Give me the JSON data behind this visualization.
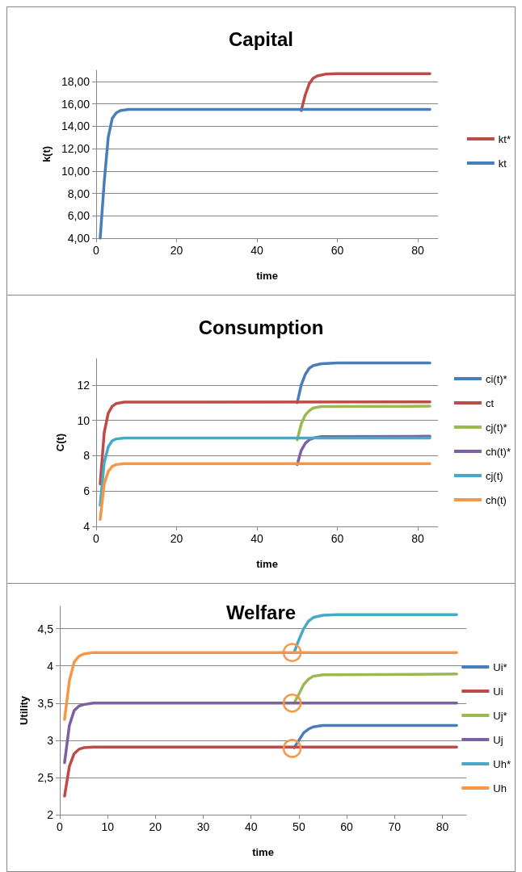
{
  "chart_data": [
    {
      "type": "line",
      "title": "Capital",
      "xlabel": "time",
      "ylabel": "k(t)",
      "xlim": [
        0,
        85
      ],
      "xticks": [
        0,
        20,
        40,
        60,
        80
      ],
      "ylim": [
        4,
        19
      ],
      "yticks": [
        {
          "value": 4,
          "label": "4,00"
        },
        {
          "value": 6,
          "label": "6,00"
        },
        {
          "value": 8,
          "label": "8,00"
        },
        {
          "value": 10,
          "label": "10,00"
        },
        {
          "value": 12,
          "label": "12,00"
        },
        {
          "value": 14,
          "label": "14,00"
        },
        {
          "value": 16,
          "label": "16,00"
        },
        {
          "value": 18,
          "label": "18,00"
        }
      ],
      "grid": "y",
      "legend": "right",
      "marker": "none",
      "line_style": "solid",
      "series": [
        {
          "name": "kt*",
          "color": "#be4b48",
          "x": [
            51,
            52,
            53,
            54,
            55,
            57,
            60,
            83
          ],
          "values": [
            15.4,
            16.8,
            17.8,
            18.3,
            18.5,
            18.65,
            18.7,
            18.7
          ]
        },
        {
          "name": "kt",
          "color": "#4a7ebb",
          "x": [
            1,
            2,
            3,
            4,
            5,
            6,
            8,
            83
          ],
          "values": [
            4,
            9,
            13,
            14.7,
            15.2,
            15.4,
            15.5,
            15.5
          ]
        }
      ]
    },
    {
      "type": "line",
      "title": "Consumption",
      "xlabel": "time",
      "ylabel": "C(t)",
      "xlim": [
        0,
        85
      ],
      "xticks": [
        0,
        20,
        40,
        60,
        80
      ],
      "ylim": [
        4,
        13.5
      ],
      "yticks": [
        4,
        6,
        8,
        10,
        12
      ],
      "grid": "y",
      "legend": "right",
      "marker": "none",
      "line_style": "solid",
      "series": [
        {
          "name": "ci(t)*",
          "color": "#4a7ebb",
          "x": [
            50,
            51,
            52,
            53,
            54,
            56,
            60,
            83
          ],
          "values": [
            11.0,
            12.0,
            12.6,
            12.95,
            13.1,
            13.2,
            13.25,
            13.25
          ]
        },
        {
          "name": "ct",
          "color": "#be4b48",
          "x": [
            1,
            2,
            3,
            4,
            5,
            7,
            83
          ],
          "values": [
            6.4,
            9.3,
            10.4,
            10.8,
            10.95,
            11.03,
            11.05
          ]
        },
        {
          "name": "cj(t)*",
          "color": "#98b954",
          "x": [
            50,
            51,
            52,
            53,
            54,
            56,
            83
          ],
          "values": [
            8.9,
            9.8,
            10.3,
            10.55,
            10.7,
            10.78,
            10.8
          ]
        },
        {
          "name": "ch(t)*",
          "color": "#7d60a0",
          "x": [
            50,
            51,
            52,
            53,
            54,
            56,
            83
          ],
          "values": [
            7.5,
            8.3,
            8.7,
            8.9,
            9.0,
            9.08,
            9.1
          ]
        },
        {
          "name": "cj(t)",
          "color": "#46aac5",
          "x": [
            1,
            2,
            3,
            4,
            5,
            7,
            83
          ],
          "values": [
            5.2,
            7.6,
            8.5,
            8.85,
            8.95,
            9.0,
            9.0
          ]
        },
        {
          "name": "ch(t)",
          "color": "#f79646",
          "x": [
            1,
            2,
            3,
            4,
            5,
            7,
            83
          ],
          "values": [
            4.4,
            6.4,
            7.1,
            7.4,
            7.5,
            7.55,
            7.55
          ]
        }
      ]
    },
    {
      "type": "line",
      "title": "Welfare",
      "xlabel": "time",
      "ylabel": "Utility",
      "xlim": [
        0,
        85
      ],
      "xticks": [
        0,
        10,
        20,
        30,
        40,
        50,
        60,
        70,
        80
      ],
      "ylim": [
        2,
        4.8
      ],
      "yticks": [
        2,
        {
          "value": 2.5,
          "label": "2,5"
        },
        3,
        {
          "value": 3.5,
          "label": "3,5"
        },
        4,
        {
          "value": 4.5,
          "label": "4,5"
        }
      ],
      "grid": "y",
      "legend": "right",
      "marker": "none",
      "line_style": "solid",
      "series": [
        {
          "name": "Ui*",
          "color": "#4a7ebb",
          "x": [
            49,
            50,
            51,
            52,
            53,
            55,
            83
          ],
          "values": [
            2.9,
            3.0,
            3.1,
            3.15,
            3.18,
            3.2,
            3.2
          ]
        },
        {
          "name": "Ui",
          "color": "#be4b48",
          "x": [
            1,
            2,
            3,
            4,
            5,
            7,
            83
          ],
          "values": [
            2.25,
            2.65,
            2.82,
            2.88,
            2.9,
            2.91,
            2.91
          ]
        },
        {
          "name": "Uj*",
          "color": "#98b954",
          "x": [
            49,
            50,
            51,
            52,
            53,
            55,
            83
          ],
          "values": [
            3.5,
            3.62,
            3.75,
            3.82,
            3.86,
            3.88,
            3.89
          ]
        },
        {
          "name": "Uj",
          "color": "#7d60a0",
          "x": [
            1,
            2,
            3,
            4,
            5,
            7,
            83
          ],
          "values": [
            2.7,
            3.2,
            3.4,
            3.46,
            3.48,
            3.5,
            3.5
          ]
        },
        {
          "name": "Uh*",
          "color": "#46aac5",
          "x": [
            49,
            50,
            51,
            52,
            53,
            55,
            58,
            83
          ],
          "values": [
            4.18,
            4.35,
            4.5,
            4.6,
            4.65,
            4.68,
            4.69,
            4.69
          ]
        },
        {
          "name": "Uh",
          "color": "#f79646",
          "x": [
            1,
            2,
            3,
            4,
            5,
            7,
            83
          ],
          "values": [
            3.28,
            3.8,
            4.05,
            4.13,
            4.16,
            4.18,
            4.18
          ]
        },
        {
          "type": "scatter",
          "color": "#f79646",
          "marker": "circle",
          "x": [
            48.6,
            48.6,
            48.6
          ],
          "values": [
            4.18,
            3.5,
            2.89
          ]
        }
      ]
    }
  ]
}
